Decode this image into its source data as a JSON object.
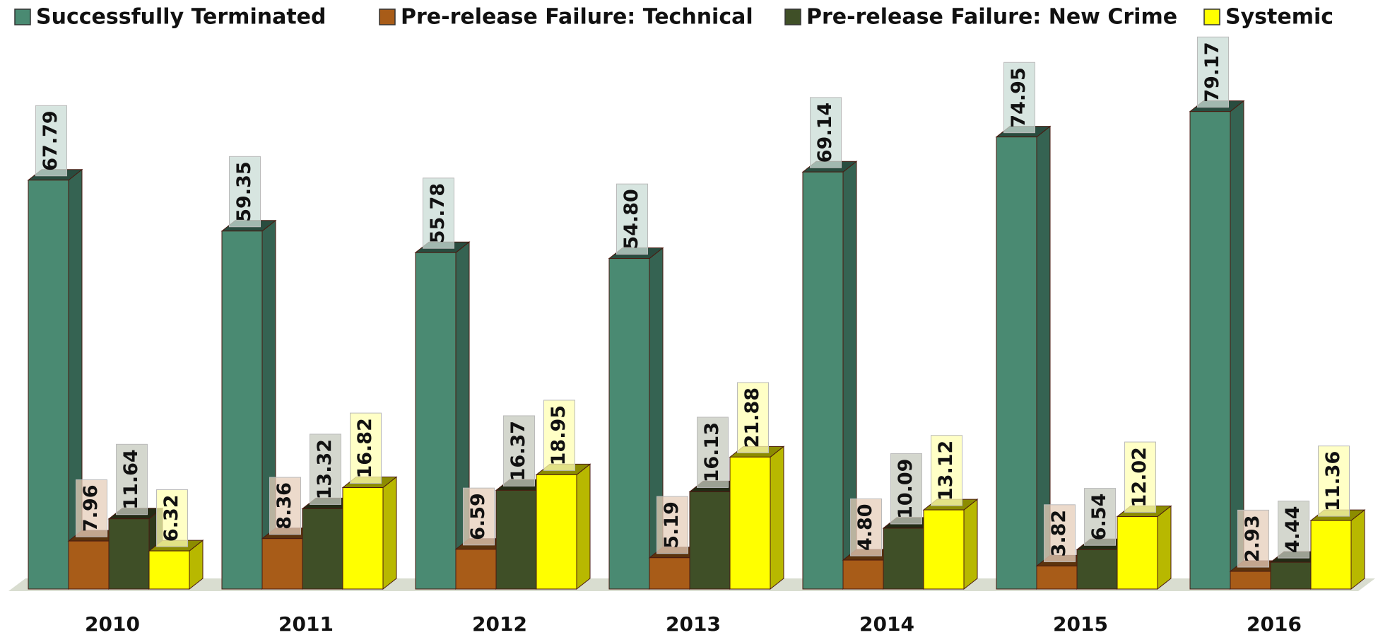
{
  "chart_data": {
    "type": "bar3d",
    "categories": [
      "2010",
      "2011",
      "2012",
      "2013",
      "2014",
      "2015",
      "2016"
    ],
    "series": [
      {
        "name": "Successfully Terminated",
        "color": "#4a8a72",
        "values": [
          67.79,
          59.35,
          55.78,
          54.8,
          69.14,
          74.95,
          79.17
        ],
        "value_labels": [
          "67.79",
          "59.35",
          "55.78",
          "54.80",
          "69.14",
          "74.95",
          "79.17"
        ]
      },
      {
        "name": "Pre-release Failure: Technical",
        "color": "#a85c18",
        "values": [
          7.96,
          8.36,
          6.59,
          5.19,
          4.8,
          3.82,
          2.93
        ],
        "value_labels": [
          "7.96",
          "8.36",
          "6.59",
          "5.19",
          "4.80",
          "3.82",
          "2.93"
        ]
      },
      {
        "name": "Pre-release Failure: New Crime",
        "color": "#3f4f27",
        "values": [
          11.64,
          13.32,
          16.37,
          16.13,
          10.09,
          6.54,
          4.44
        ],
        "value_labels": [
          "11.64",
          "13.32",
          "16.37",
          "16.13",
          "10.09",
          "6.54",
          "4.44"
        ]
      },
      {
        "name": "Systemic",
        "color": "#ffff00",
        "values": [
          6.32,
          16.82,
          18.95,
          21.88,
          13.12,
          12.02,
          11.36
        ],
        "value_labels": [
          "6.32",
          "16.82",
          "18.95",
          "21.88",
          "13.12",
          "12.02",
          "11.36"
        ]
      }
    ],
    "legend": "top"
  }
}
